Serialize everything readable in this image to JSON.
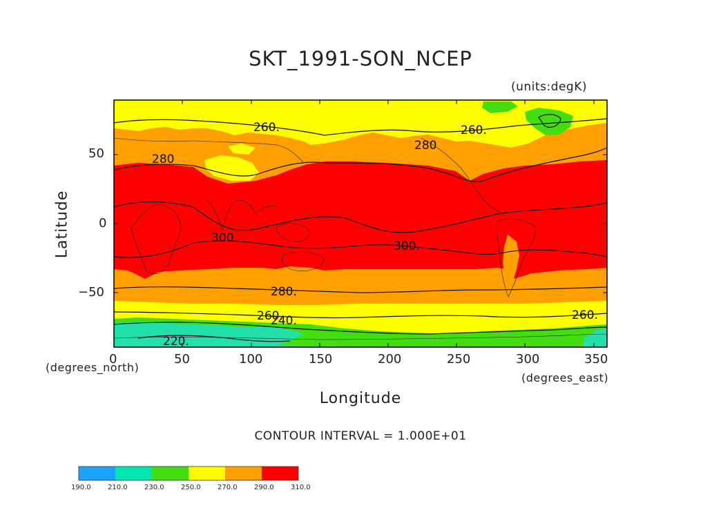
{
  "title": "SKT_1991-SON_NCEP",
  "units": "(units:degK)",
  "axis": {
    "xlabel": "Longitude",
    "ylabel": "Latitude",
    "x_unit": "(degrees_east)",
    "y_unit": "(degrees_north)",
    "xticks": [
      "0",
      "50",
      "100",
      "150",
      "200",
      "250",
      "300",
      "350"
    ],
    "yticks": [
      "50",
      "0",
      "−50"
    ]
  },
  "contour_note": "CONTOUR INTERVAL = 1.000E+01",
  "contour_labels": [
    "260.",
    "260.",
    "280",
    "280",
    "300.",
    "300.",
    "280.",
    "260.",
    "240.",
    "260.",
    "220."
  ],
  "colorbar": {
    "labels": [
      "190.0",
      "210.0",
      "230.0",
      "250.0",
      "270.0",
      "290.0",
      "310.0"
    ],
    "colors": [
      "#1aa3ff",
      "#00e8b0",
      "#44dd11",
      "#ffff00",
      "#ff9f00",
      "#ff0000"
    ]
  },
  "map": {
    "lon_range": [
      0,
      360
    ],
    "lat_range": [
      -90,
      90
    ],
    "band_colors": {
      "t210_230": "#22e0aa",
      "t230_250": "#44dd11",
      "t250_270": "#ffff00",
      "t270_290": "#ff9f00",
      "t290_310": "#ff0000"
    }
  }
}
